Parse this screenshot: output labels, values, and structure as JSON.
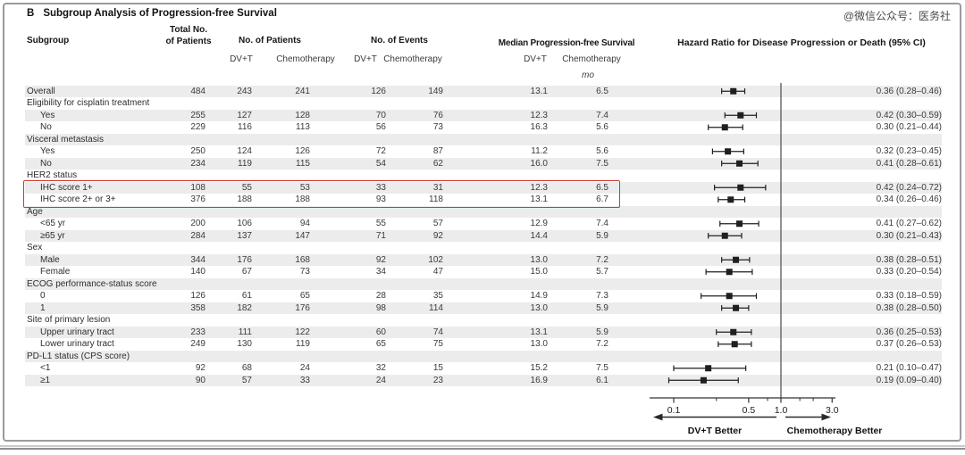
{
  "panel": {
    "label": "B",
    "title": "Subgroup Analysis of Progression-free Survival"
  },
  "watermark": "@微信公众号：医务社",
  "header": {
    "subgroup": "Subgroup",
    "total_line1": "Total No.",
    "total_line2": "of Patients",
    "no_of_patients": "No. of Patients",
    "no_of_events": "No. of Events",
    "median_pfs": "Median Progression-free Survival",
    "hazard_ratio": "Hazard Ratio for Disease Progression or Death (95% CI)",
    "arm_dvt": "DV+T",
    "arm_chemo": "Chemotherapy",
    "unit": "mo"
  },
  "footer": {
    "left_better": "DV+T Better",
    "right_better": "Chemotherapy Better"
  },
  "colors": {
    "highlight_box": "#cc3b2f",
    "stripe": "#ececec",
    "marker": "#1f1f1f",
    "axis": "#333333"
  },
  "chart_data": {
    "type": "scatter",
    "subtype": "forest-plot",
    "title": "Subgroup Analysis of Progression-free Survival",
    "xlabel": "Hazard Ratio for Disease Progression or Death (95% CI)",
    "x_scale": "log10",
    "xlim": [
      0.06,
      3.4
    ],
    "reference_line": 1.0,
    "x_ticks_major": [
      0.1,
      0.5,
      1.0,
      3.0
    ],
    "x_tick_labels": [
      "0.1",
      "0.5",
      "1.0",
      "3.0"
    ],
    "x_ticks_minor": [
      0.25,
      0.75,
      1.5,
      2.0
    ],
    "rows": [
      {
        "label": "Overall",
        "indent": false,
        "group": false,
        "total": "484",
        "pts_dvt": "243",
        "pts_chemo": "241",
        "ev_dvt": "126",
        "ev_chemo": "149",
        "pfs_dvt": "13.1",
        "pfs_chemo": "6.5",
        "hr": 0.36,
        "ci_low": 0.28,
        "ci_high": 0.46,
        "hr_text": "0.36 (0.28–0.46)"
      },
      {
        "label": "Eligibility for cisplatin treatment",
        "group": true
      },
      {
        "label": "Yes",
        "indent": true,
        "group": false,
        "total": "255",
        "pts_dvt": "127",
        "pts_chemo": "128",
        "ev_dvt": "70",
        "ev_chemo": "76",
        "pfs_dvt": "12.3",
        "pfs_chemo": "7.4",
        "hr": 0.42,
        "ci_low": 0.3,
        "ci_high": 0.59,
        "hr_text": "0.42 (0.30–0.59)"
      },
      {
        "label": "No",
        "indent": true,
        "group": false,
        "total": "229",
        "pts_dvt": "116",
        "pts_chemo": "113",
        "ev_dvt": "56",
        "ev_chemo": "73",
        "pfs_dvt": "16.3",
        "pfs_chemo": "5.6",
        "hr": 0.3,
        "ci_low": 0.21,
        "ci_high": 0.44,
        "hr_text": "0.30 (0.21–0.44)"
      },
      {
        "label": "Visceral metastasis",
        "group": true
      },
      {
        "label": "Yes",
        "indent": true,
        "group": false,
        "total": "250",
        "pts_dvt": "124",
        "pts_chemo": "126",
        "ev_dvt": "72",
        "ev_chemo": "87",
        "pfs_dvt": "11.2",
        "pfs_chemo": "5.6",
        "hr": 0.32,
        "ci_low": 0.23,
        "ci_high": 0.45,
        "hr_text": "0.32 (0.23–0.45)"
      },
      {
        "label": "No",
        "indent": true,
        "group": false,
        "total": "234",
        "pts_dvt": "119",
        "pts_chemo": "115",
        "ev_dvt": "54",
        "ev_chemo": "62",
        "pfs_dvt": "16.0",
        "pfs_chemo": "7.5",
        "hr": 0.41,
        "ci_low": 0.28,
        "ci_high": 0.61,
        "hr_text": "0.41 (0.28–0.61)"
      },
      {
        "label": "HER2 status",
        "group": true
      },
      {
        "label": "IHC score 1+",
        "indent": true,
        "group": false,
        "highlight": true,
        "total": "108",
        "pts_dvt": "55",
        "pts_chemo": "53",
        "ev_dvt": "33",
        "ev_chemo": "31",
        "pfs_dvt": "12.3",
        "pfs_chemo": "6.5",
        "hr": 0.42,
        "ci_low": 0.24,
        "ci_high": 0.72,
        "hr_text": "0.42 (0.24–0.72)"
      },
      {
        "label": "IHC score 2+ or 3+",
        "indent": true,
        "group": false,
        "highlight": true,
        "total": "376",
        "pts_dvt": "188",
        "pts_chemo": "188",
        "ev_dvt": "93",
        "ev_chemo": "118",
        "pfs_dvt": "13.1",
        "pfs_chemo": "6.7",
        "hr": 0.34,
        "ci_low": 0.26,
        "ci_high": 0.46,
        "hr_text": "0.34 (0.26–0.46)"
      },
      {
        "label": "Age",
        "group": true
      },
      {
        "label": "<65 yr",
        "indent": true,
        "group": false,
        "total": "200",
        "pts_dvt": "106",
        "pts_chemo": "94",
        "ev_dvt": "55",
        "ev_chemo": "57",
        "pfs_dvt": "12.9",
        "pfs_chemo": "7.4",
        "hr": 0.41,
        "ci_low": 0.27,
        "ci_high": 0.62,
        "hr_text": "0.41 (0.27–0.62)"
      },
      {
        "label": "≥65 yr",
        "indent": true,
        "group": false,
        "total": "284",
        "pts_dvt": "137",
        "pts_chemo": "147",
        "ev_dvt": "71",
        "ev_chemo": "92",
        "pfs_dvt": "14.4",
        "pfs_chemo": "5.9",
        "hr": 0.3,
        "ci_low": 0.21,
        "ci_high": 0.43,
        "hr_text": "0.30 (0.21–0.43)"
      },
      {
        "label": "Sex",
        "group": true
      },
      {
        "label": "Male",
        "indent": true,
        "group": false,
        "total": "344",
        "pts_dvt": "176",
        "pts_chemo": "168",
        "ev_dvt": "92",
        "ev_chemo": "102",
        "pfs_dvt": "13.0",
        "pfs_chemo": "7.2",
        "hr": 0.38,
        "ci_low": 0.28,
        "ci_high": 0.51,
        "hr_text": "0.38 (0.28–0.51)"
      },
      {
        "label": "Female",
        "indent": true,
        "group": false,
        "total": "140",
        "pts_dvt": "67",
        "pts_chemo": "73",
        "ev_dvt": "34",
        "ev_chemo": "47",
        "pfs_dvt": "15.0",
        "pfs_chemo": "5.7",
        "hr": 0.33,
        "ci_low": 0.2,
        "ci_high": 0.54,
        "hr_text": "0.33 (0.20–0.54)"
      },
      {
        "label": "ECOG performance-status score",
        "group": true
      },
      {
        "label": "0",
        "indent": true,
        "group": false,
        "total": "126",
        "pts_dvt": "61",
        "pts_chemo": "65",
        "ev_dvt": "28",
        "ev_chemo": "35",
        "pfs_dvt": "14.9",
        "pfs_chemo": "7.3",
        "hr": 0.33,
        "ci_low": 0.18,
        "ci_high": 0.59,
        "hr_text": "0.33 (0.18–0.59)"
      },
      {
        "label": "1",
        "indent": true,
        "group": false,
        "total": "358",
        "pts_dvt": "182",
        "pts_chemo": "176",
        "ev_dvt": "98",
        "ev_chemo": "114",
        "pfs_dvt": "13.0",
        "pfs_chemo": "5.9",
        "hr": 0.38,
        "ci_low": 0.28,
        "ci_high": 0.5,
        "hr_text": "0.38 (0.28–0.50)"
      },
      {
        "label": "Site of primary lesion",
        "group": true
      },
      {
        "label": "Upper urinary tract",
        "indent": true,
        "group": false,
        "total": "233",
        "pts_dvt": "111",
        "pts_chemo": "122",
        "ev_dvt": "60",
        "ev_chemo": "74",
        "pfs_dvt": "13.1",
        "pfs_chemo": "5.9",
        "hr": 0.36,
        "ci_low": 0.25,
        "ci_high": 0.53,
        "hr_text": "0.36 (0.25–0.53)"
      },
      {
        "label": "Lower urinary tract",
        "indent": true,
        "group": false,
        "total": "249",
        "pts_dvt": "130",
        "pts_chemo": "119",
        "ev_dvt": "65",
        "ev_chemo": "75",
        "pfs_dvt": "13.0",
        "pfs_chemo": "7.2",
        "hr": 0.37,
        "ci_low": 0.26,
        "ci_high": 0.53,
        "hr_text": "0.37 (0.26–0.53)"
      },
      {
        "label": "PD-L1 status (CPS score)",
        "group": true
      },
      {
        "label": "<1",
        "indent": true,
        "group": false,
        "total": "92",
        "pts_dvt": "68",
        "pts_chemo": "24",
        "ev_dvt": "32",
        "ev_chemo": "15",
        "pfs_dvt": "15.2",
        "pfs_chemo": "7.5",
        "hr": 0.21,
        "ci_low": 0.1,
        "ci_high": 0.47,
        "hr_text": "0.21 (0.10–0.47)"
      },
      {
        "label": "≥1",
        "indent": true,
        "group": false,
        "total": "90",
        "pts_dvt": "57",
        "pts_chemo": "33",
        "ev_dvt": "24",
        "ev_chemo": "23",
        "pfs_dvt": "16.9",
        "pfs_chemo": "6.1",
        "hr": 0.19,
        "ci_low": 0.09,
        "ci_high": 0.4,
        "hr_text": "0.19 (0.09–0.40)"
      }
    ]
  }
}
